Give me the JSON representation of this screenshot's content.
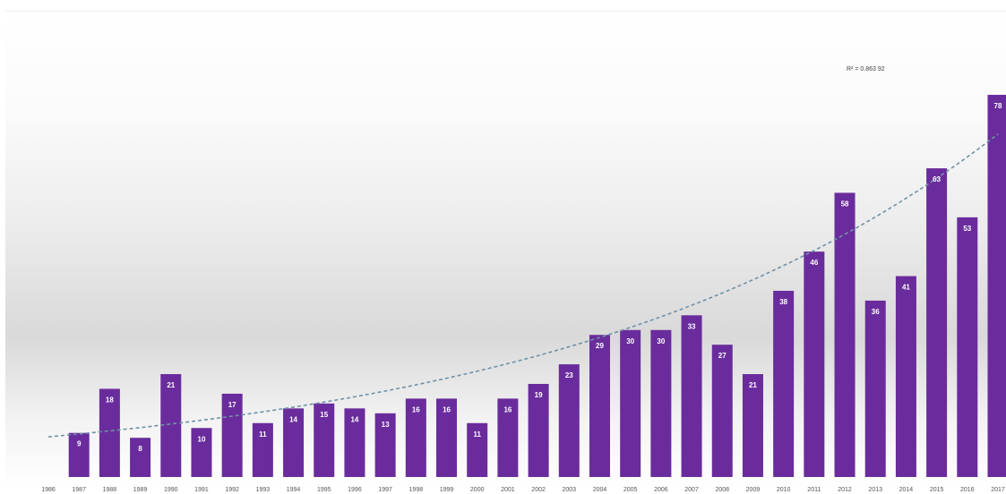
{
  "chart_data": {
    "type": "bar",
    "title": "",
    "xlabel": "",
    "ylabel": "",
    "categories": [
      "1986",
      "1987",
      "1988",
      "1989",
      "1990",
      "1991",
      "1992",
      "1993",
      "1994",
      "1995",
      "1996",
      "1997",
      "1998",
      "1999",
      "2000",
      "2001",
      "2002",
      "2003",
      "2004",
      "2005",
      "2006",
      "2007",
      "2008",
      "2009",
      "2010",
      "2011",
      "2012",
      "2013",
      "2014",
      "2015",
      "2016",
      "2017"
    ],
    "series": [
      {
        "values": [
          null,
          9,
          18,
          8,
          21,
          10,
          17,
          11,
          14,
          15,
          14,
          13,
          16,
          16,
          11,
          16,
          19,
          23,
          29,
          30,
          30,
          33,
          27,
          21,
          38,
          46,
          58,
          36,
          41,
          63,
          53,
          78
        ],
        "data_labels": [
          "",
          "9",
          "18",
          "8",
          "21",
          "10",
          "17",
          "11",
          "14",
          "15",
          "14",
          "13",
          "16",
          "16",
          "11",
          "16",
          "19",
          "23",
          "29",
          "30",
          "30",
          "33",
          "27",
          "21",
          "38",
          "46",
          "58",
          "36",
          "41",
          "63",
          "53",
          "78"
        ]
      }
    ],
    "ylim": [
      0,
      90
    ],
    "grid": false,
    "legend": "none",
    "trendline": {
      "type": "exponential",
      "style": "dashed",
      "label": "R² = 0.863 92",
      "start_value": 8.2,
      "end_value": 70
    },
    "colors": {
      "bar": "#6a2c9c",
      "trendline": "#6f92a8",
      "data_label": "#ffffff"
    }
  }
}
